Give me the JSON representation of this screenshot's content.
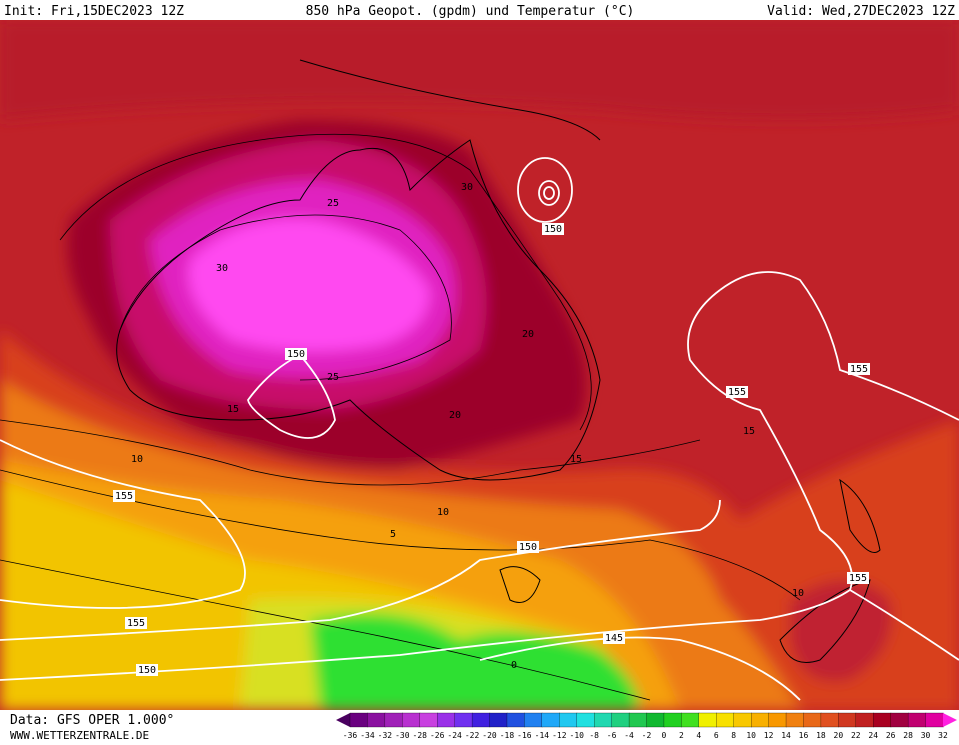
{
  "header": {
    "init": "Init: Fri,15DEC2023 12Z",
    "title": "850 hPa Geopot. (gpdm) und Temperatur (°C)",
    "valid": "Valid: Wed,27DEC2023 12Z"
  },
  "footer": {
    "data": "Data: GFS OPER 1.000°",
    "site": "WWW.WETTERZENTRALE.DE"
  },
  "colorbar": {
    "labels": [
      -36,
      -34,
      -32,
      -30,
      -28,
      -26,
      -24,
      -22,
      -20,
      -18,
      -16,
      -14,
      -12,
      -10,
      -8,
      -6,
      -4,
      -2,
      0,
      2,
      4,
      6,
      8,
      10,
      12,
      14,
      16,
      18,
      20,
      22,
      24,
      26,
      28,
      30,
      32
    ]
  },
  "map": {
    "geopotential_labels": [
      "150",
      "150",
      "155",
      "155",
      "155",
      "150",
      "155",
      "150",
      "155",
      "145"
    ],
    "temperature_labels": [
      "30",
      "25",
      "30",
      "20",
      "25",
      "15",
      "20",
      "15",
      "10",
      "15",
      "10",
      "5",
      "10",
      "0"
    ]
  }
}
